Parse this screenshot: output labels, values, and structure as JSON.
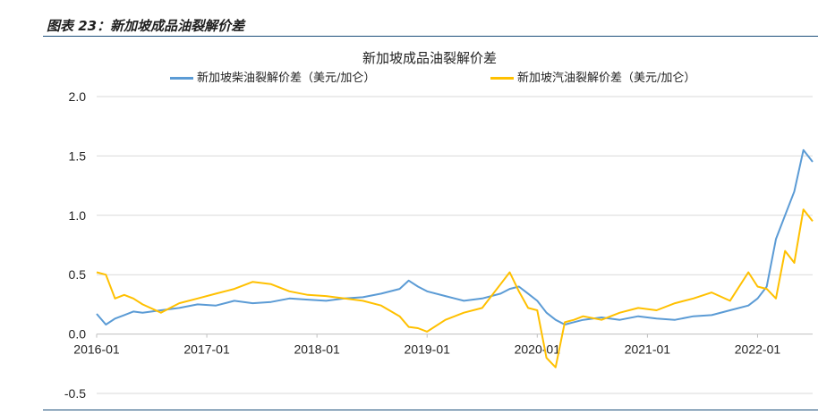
{
  "caption": "图表 23：新加坡成品油裂解价差",
  "colors": {
    "diesel": "#5b9bd5",
    "gasoline": "#ffc000",
    "rule": "#1c4f7a",
    "grid": "#d9d9d9"
  },
  "chart_data": {
    "type": "line",
    "title": "新加坡成品油裂解价差",
    "xlabel": "",
    "ylabel": "",
    "ylim": [
      -0.5,
      2.0
    ],
    "yticks": [
      -0.5,
      0.0,
      0.5,
      1.0,
      1.5,
      2.0
    ],
    "ytick_labels": [
      "-0.5",
      "0.0",
      "0.5",
      "1.0",
      "1.5",
      "2.0"
    ],
    "xlim": [
      "2016-01",
      "2022-07"
    ],
    "xticks": [
      "2016-01",
      "2017-01",
      "2018-01",
      "2019-01",
      "2020-01",
      "2021-01",
      "2022-01"
    ],
    "grid": "horizontal",
    "legend_position": "top",
    "series": [
      {
        "name": "新加坡柴油裂解价差（美元/加仑）",
        "color": "#5b9bd5",
        "x": [
          "2016-01",
          "2016-02",
          "2016-03",
          "2016-04",
          "2016-05",
          "2016-06",
          "2016-08",
          "2016-10",
          "2016-12",
          "2017-02",
          "2017-04",
          "2017-06",
          "2017-08",
          "2017-10",
          "2017-12",
          "2018-02",
          "2018-04",
          "2018-06",
          "2018-08",
          "2018-10",
          "2018-11",
          "2018-12",
          "2019-01",
          "2019-03",
          "2019-05",
          "2019-07",
          "2019-09",
          "2019-10",
          "2019-11",
          "2019-12",
          "2020-01",
          "2020-02",
          "2020-03",
          "2020-04",
          "2020-05",
          "2020-06",
          "2020-08",
          "2020-10",
          "2020-12",
          "2021-02",
          "2021-04",
          "2021-06",
          "2021-08",
          "2021-10",
          "2021-12",
          "2022-01",
          "2022-02",
          "2022-03",
          "2022-04",
          "2022-05",
          "2022-06",
          "2022-07"
        ],
        "y": [
          0.17,
          0.08,
          0.13,
          0.16,
          0.19,
          0.18,
          0.2,
          0.22,
          0.25,
          0.24,
          0.28,
          0.26,
          0.27,
          0.3,
          0.29,
          0.28,
          0.3,
          0.31,
          0.34,
          0.38,
          0.45,
          0.4,
          0.36,
          0.32,
          0.28,
          0.3,
          0.34,
          0.38,
          0.4,
          0.34,
          0.28,
          0.18,
          0.12,
          0.08,
          0.1,
          0.12,
          0.14,
          0.12,
          0.15,
          0.13,
          0.12,
          0.15,
          0.16,
          0.2,
          0.24,
          0.3,
          0.4,
          0.8,
          1.0,
          1.2,
          1.55,
          1.45
        ]
      },
      {
        "name": "新加坡汽油裂解价差（美元/加仑）",
        "color": "#ffc000",
        "x": [
          "2016-01",
          "2016-02",
          "2016-03",
          "2016-04",
          "2016-05",
          "2016-06",
          "2016-08",
          "2016-10",
          "2016-12",
          "2017-02",
          "2017-04",
          "2017-06",
          "2017-08",
          "2017-10",
          "2017-12",
          "2018-02",
          "2018-04",
          "2018-06",
          "2018-08",
          "2018-10",
          "2018-11",
          "2018-12",
          "2019-01",
          "2019-03",
          "2019-05",
          "2019-07",
          "2019-09",
          "2019-10",
          "2019-11",
          "2019-12",
          "2020-01",
          "2020-02",
          "2020-03",
          "2020-04",
          "2020-05",
          "2020-06",
          "2020-08",
          "2020-10",
          "2020-12",
          "2021-02",
          "2021-04",
          "2021-06",
          "2021-08",
          "2021-10",
          "2021-12",
          "2022-01",
          "2022-02",
          "2022-03",
          "2022-04",
          "2022-05",
          "2022-06",
          "2022-07"
        ],
        "y": [
          0.52,
          0.5,
          0.3,
          0.33,
          0.3,
          0.25,
          0.18,
          0.26,
          0.3,
          0.34,
          0.38,
          0.44,
          0.42,
          0.36,
          0.33,
          0.32,
          0.3,
          0.28,
          0.24,
          0.15,
          0.06,
          0.05,
          0.02,
          0.12,
          0.18,
          0.22,
          0.42,
          0.52,
          0.36,
          0.22,
          0.2,
          -0.2,
          -0.28,
          0.1,
          0.12,
          0.15,
          0.12,
          0.18,
          0.22,
          0.2,
          0.26,
          0.3,
          0.35,
          0.28,
          0.52,
          0.4,
          0.38,
          0.3,
          0.7,
          0.6,
          1.05,
          0.95
        ]
      }
    ]
  }
}
